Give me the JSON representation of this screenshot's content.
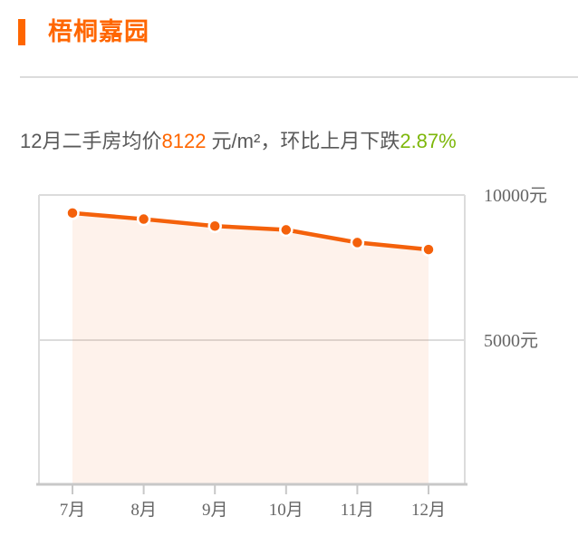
{
  "header": {
    "title": "梧桐嘉园"
  },
  "summary": {
    "prefix": "12月二手房均价",
    "price": "8122",
    "middle": " 元/m²，环比上月下跌",
    "change": "2.87%"
  },
  "colors": {
    "accent_orange": "#ff6600",
    "line_orange": "#f4610b",
    "marker_orange": "#f4610b",
    "marker_border": "#ffffff",
    "area_fill": "rgba(246,110,28,0.09)",
    "change_green": "#7db70a",
    "axis_text": "#666666",
    "grid_line": "#dcdcdc",
    "axis_line": "#c8c8c8",
    "divider": "#dcdcdc",
    "summary_text": "#595959"
  },
  "chart_data": {
    "type": "area",
    "title": "",
    "xlabel": "",
    "ylabel": "",
    "categories": [
      "7月",
      "8月",
      "9月",
      "10月",
      "11月",
      "12月"
    ],
    "values": [
      9380,
      9170,
      8930,
      8800,
      8362,
      8122
    ],
    "y_unit": "元",
    "y_ticks": [
      {
        "label": "10000元",
        "value": 10000
      },
      {
        "label": "5000元",
        "value": 5000
      }
    ],
    "ylim": [
      0,
      10000
    ],
    "grid": true,
    "legend": false,
    "y_axis_side": "right"
  }
}
